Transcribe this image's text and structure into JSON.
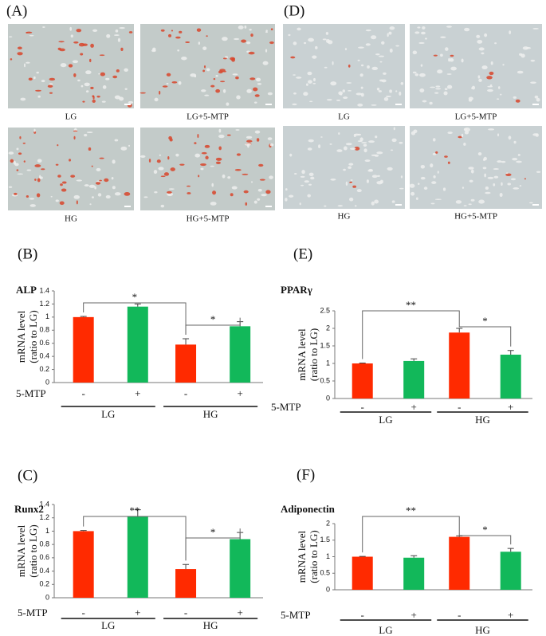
{
  "figure": {
    "panels": [
      {
        "label": "(A)",
        "images": [
          "LG",
          "LG+5-MTP",
          "HG",
          "HG+5-MTP"
        ]
      },
      {
        "label": "(D)",
        "images": [
          "LG",
          "LG+5-MTP",
          "HG",
          "HG+5-MTP"
        ]
      }
    ]
  },
  "chart_data": [
    {
      "type": "bar",
      "panel": "(B)",
      "title": "ALP",
      "ylabel": [
        "mRNA level",
        "(ratio to LG)"
      ],
      "xrow_label": "5-MTP",
      "categories": [
        "-",
        "+",
        "-",
        "+"
      ],
      "groups": [
        "LG",
        "HG"
      ],
      "values": [
        1.0,
        1.16,
        0.58,
        0.86
      ],
      "errors": [
        0.01,
        0.04,
        0.09,
        0.07
      ],
      "colors": [
        "#ff2a00",
        "#12b85a",
        "#ff2a00",
        "#12b85a"
      ],
      "ylim": [
        0,
        1.4
      ],
      "yticks": [
        0,
        0.2,
        0.4,
        0.6,
        0.8,
        1,
        1.2,
        1.4
      ],
      "annotations": [
        "*",
        "*"
      ]
    },
    {
      "type": "bar",
      "panel": "(E)",
      "title": "PPARγ",
      "ylabel": [
        "mRNA level",
        "(ratio to LG)"
      ],
      "xrow_label": "5-MTP",
      "categories": [
        "-",
        "+",
        "-",
        "+"
      ],
      "groups": [
        "LG",
        "HG"
      ],
      "values": [
        1.0,
        1.07,
        1.88,
        1.25
      ],
      "errors": [
        0.01,
        0.06,
        0.12,
        0.12
      ],
      "colors": [
        "#ff2a00",
        "#12b85a",
        "#ff2a00",
        "#12b85a"
      ],
      "ylim": [
        0,
        2.5
      ],
      "yticks": [
        0,
        0.5,
        1,
        1.5,
        2,
        2.5
      ],
      "annotations": [
        "**",
        "*"
      ]
    },
    {
      "type": "bar",
      "panel": "(C)",
      "title": "Runx2",
      "ylabel": [
        "mRNA level",
        "(ratio to LG)"
      ],
      "xrow_label": "5-MTP",
      "categories": [
        "-",
        "+",
        "-",
        "+"
      ],
      "groups": [
        "LG",
        "HG"
      ],
      "values": [
        1.0,
        1.22,
        0.43,
        0.88
      ],
      "errors": [
        0.01,
        0.1,
        0.07,
        0.1
      ],
      "colors": [
        "#ff2a00",
        "#12b85a",
        "#ff2a00",
        "#12b85a"
      ],
      "ylim": [
        0,
        1.4
      ],
      "yticks": [
        0,
        0.2,
        0.4,
        0.6,
        0.8,
        1,
        1.2,
        1.4
      ],
      "annotations": [
        "**",
        "*"
      ]
    },
    {
      "type": "bar",
      "panel": "(F)",
      "title": "Adiponectin",
      "ylabel": [
        "mRNA level",
        "(ratio to LG)"
      ],
      "xrow_label": "5-MTP",
      "categories": [
        "-",
        "+",
        "-",
        "+"
      ],
      "groups": [
        "LG",
        "HG"
      ],
      "values": [
        1.0,
        0.97,
        1.6,
        1.15
      ],
      "errors": [
        0.01,
        0.06,
        0.03,
        0.1
      ],
      "colors": [
        "#ff2a00",
        "#12b85a",
        "#ff2a00",
        "#12b85a"
      ],
      "ylim": [
        0,
        2
      ],
      "yticks": [
        0,
        0.5,
        1,
        1.5,
        2
      ],
      "annotations": [
        "**",
        "*"
      ]
    }
  ]
}
